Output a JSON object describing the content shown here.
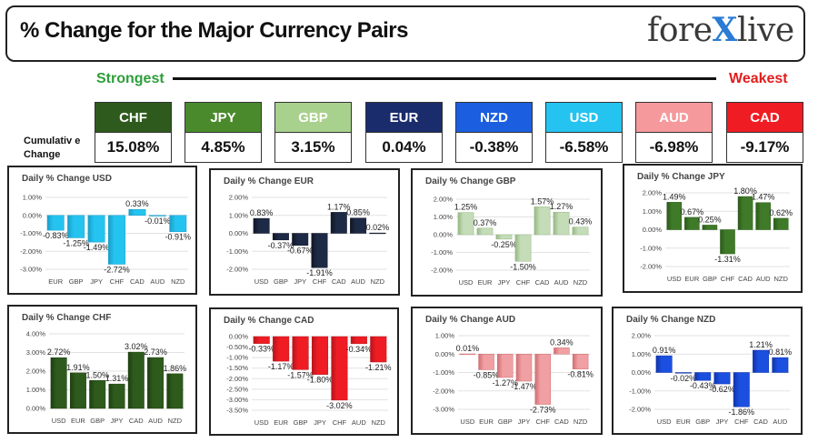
{
  "header": {
    "title": "% Change for the Major Currency Pairs",
    "logo": {
      "left": "fore",
      "mark": "X",
      "right": "live"
    },
    "strongest_label": "Strongest",
    "weakest_label": "Weakest"
  },
  "cumulative_label_line1": "Cumulativ e",
  "cumulative_label_line2": "Change",
  "currencies": [
    {
      "code": "CHF",
      "value": "15.08%",
      "color": "#2e5b1d"
    },
    {
      "code": "JPY",
      "value": "4.85%",
      "color": "#4a8a2c"
    },
    {
      "code": "GBP",
      "value": "3.15%",
      "color": "#a9d18e"
    },
    {
      "code": "EUR",
      "value": "0.04%",
      "color": "#1a2c6b"
    },
    {
      "code": "NZD",
      "value": "-0.38%",
      "color": "#1b5fe0"
    },
    {
      "code": "USD",
      "value": "-6.58%",
      "color": "#25c3f0"
    },
    {
      "code": "AUD",
      "value": "-6.98%",
      "color": "#f5999c"
    },
    {
      "code": "CAD",
      "value": "-9.17%",
      "color": "#ef1c24"
    }
  ],
  "chart_data": [
    {
      "type": "bar",
      "title": "Daily % Change USD",
      "categories": [
        "EUR",
        "GBP",
        "JPY",
        "CHF",
        "CAD",
        "AUD",
        "NZD"
      ],
      "values": [
        -0.83,
        -1.25,
        -1.49,
        -2.72,
        0.33,
        -0.01,
        -0.91
      ],
      "labels": [
        "-0.83%",
        "-1.25%",
        "-1.49%",
        "-2.72%",
        "0.33%",
        "-0.01%",
        "-0.91%"
      ],
      "yticks": [
        1,
        0,
        -1,
        -2,
        -3
      ],
      "ytick_labels": [
        "1.00%",
        "0.00%",
        "-1.00%",
        "-2.00%",
        "-3.00%"
      ],
      "ylim": [
        -3,
        1
      ],
      "color": "#25c3f0",
      "dark": "#1a9ec8"
    },
    {
      "type": "bar",
      "title": "Daily % Change EUR",
      "categories": [
        "USD",
        "GBP",
        "JPY",
        "CHF",
        "CAD",
        "AUD",
        "NZD"
      ],
      "values": [
        0.83,
        -0.37,
        -0.67,
        -1.91,
        1.17,
        0.85,
        0.02
      ],
      "labels": [
        "0.83%",
        "-0.37%",
        "-0.67%",
        "-1.91%",
        "1.17%",
        "0.85%",
        "0.02%"
      ],
      "yticks": [
        2,
        1,
        0,
        -1,
        -2
      ],
      "ytick_labels": [
        "2.00%",
        "1.00%",
        "0.00%",
        "-1.00%",
        "-2.00%"
      ],
      "ylim": [
        -2,
        2
      ],
      "color": "#1d2a45",
      "dark": "#0f1626"
    },
    {
      "type": "bar",
      "title": "Daily % Change GBP",
      "categories": [
        "USD",
        "EUR",
        "JPY",
        "CHF",
        "CAD",
        "AUD",
        "NZD"
      ],
      "values": [
        1.25,
        0.37,
        -0.25,
        -1.5,
        1.57,
        1.27,
        0.43
      ],
      "labels": [
        "1.25%",
        "0.37%",
        "-0.25%",
        "-1.50%",
        "1.57%",
        "1.27%",
        "0.43%"
      ],
      "yticks": [
        2,
        1,
        0,
        -1,
        -2
      ],
      "ytick_labels": [
        "2.00%",
        "1.00%",
        "0.00%",
        "-1.00%",
        "-2.00%"
      ],
      "ylim": [
        -2,
        2
      ],
      "color": "#c5dcb8",
      "dark": "#95b884"
    },
    {
      "type": "bar",
      "title": "Daily % Change JPY",
      "categories": [
        "USD",
        "EUR",
        "GBP",
        "CHF",
        "CAD",
        "AUD",
        "NZD"
      ],
      "values": [
        1.49,
        0.67,
        0.25,
        -1.31,
        1.8,
        1.47,
        0.62
      ],
      "labels": [
        "1.49%",
        "0.67%",
        "0.25%",
        "-1.31%",
        "1.80%",
        "1.47%",
        "0.62%"
      ],
      "yticks": [
        2,
        1,
        0,
        -1,
        -2
      ],
      "ytick_labels": [
        "2.00%",
        "1.00%",
        "0.00%",
        "-1.00%",
        "-2.00%"
      ],
      "ylim": [
        -2,
        2
      ],
      "color": "#3f7a28",
      "dark": "#2b5a1a"
    },
    {
      "type": "bar",
      "title": "Daily % Change CHF",
      "categories": [
        "USD",
        "EUR",
        "GBP",
        "JPY",
        "CAD",
        "AUD",
        "NZD"
      ],
      "values": [
        2.72,
        1.91,
        1.5,
        1.31,
        3.02,
        2.73,
        1.86
      ],
      "labels": [
        "2.72%",
        "1.91%",
        "1.50%",
        "1.31%",
        "3.02%",
        "2.73%",
        "1.86%"
      ],
      "yticks": [
        4,
        3,
        2,
        1,
        0
      ],
      "ytick_labels": [
        "4.00%",
        "3.00%",
        "2.00%",
        "1.00%",
        "0.00%"
      ],
      "ylim": [
        0,
        4
      ],
      "color": "#2e5b1d",
      "dark": "#1d3f10"
    },
    {
      "type": "bar",
      "title": "Daily % Change CAD",
      "categories": [
        "USD",
        "EUR",
        "GBP",
        "JPY",
        "CHF",
        "AUD",
        "NZD"
      ],
      "values": [
        -0.33,
        -1.17,
        -1.57,
        -1.8,
        -3.02,
        -0.34,
        -1.21
      ],
      "labels": [
        "-0.33%",
        "-1.17%",
        "-1.57%",
        "-1.80%",
        "-3.02%",
        "-0.34%",
        "-1.21%"
      ],
      "yticks": [
        0,
        -0.5,
        -1,
        -1.5,
        -2,
        -2.5,
        -3,
        -3.5
      ],
      "ytick_labels": [
        "0.00%",
        "-0.50%",
        "-1.00%",
        "-1.50%",
        "-2.00%",
        "-2.50%",
        "-3.00%",
        "-3.50%"
      ],
      "ylim": [
        -3.5,
        0
      ],
      "color": "#ef1c24",
      "dark": "#b8141a"
    },
    {
      "type": "bar",
      "title": "Daily % Change AUD",
      "categories": [
        "USD",
        "EUR",
        "GBP",
        "JPY",
        "CHF",
        "CAD",
        "NZD"
      ],
      "values": [
        0.01,
        -0.85,
        -1.27,
        -1.47,
        -2.73,
        0.34,
        -0.81
      ],
      "labels": [
        "0.01%",
        "-0.85%",
        "-1.27%",
        "-1.47%",
        "-2.73%",
        "0.34%",
        "-0.81%"
      ],
      "yticks": [
        1,
        0,
        -1,
        -2,
        -3
      ],
      "ytick_labels": [
        "1.00%",
        "0.00%",
        "-1.00%",
        "-2.00%",
        "-3.00%"
      ],
      "ylim": [
        -3,
        1
      ],
      "color": "#f0a0a3",
      "dark": "#d06e72"
    },
    {
      "type": "bar",
      "title": "Daily % Change NZD",
      "categories": [
        "USD",
        "EUR",
        "GBP",
        "JPY",
        "CHF",
        "CAD",
        "AUD"
      ],
      "values": [
        0.91,
        -0.02,
        -0.43,
        -0.62,
        -1.86,
        1.21,
        0.81
      ],
      "labels": [
        "0.91%",
        "-0.02%",
        "-0.43%",
        "-0.62%",
        "-1.86%",
        "1.21%",
        "0.81%"
      ],
      "yticks": [
        2,
        1,
        0,
        -1,
        -2
      ],
      "ytick_labels": [
        "2.00%",
        "1.00%",
        "0.00%",
        "-1.00%",
        "-2.00%"
      ],
      "ylim": [
        -2,
        2
      ],
      "color": "#1b4fe0",
      "dark": "#0f34a8"
    }
  ]
}
